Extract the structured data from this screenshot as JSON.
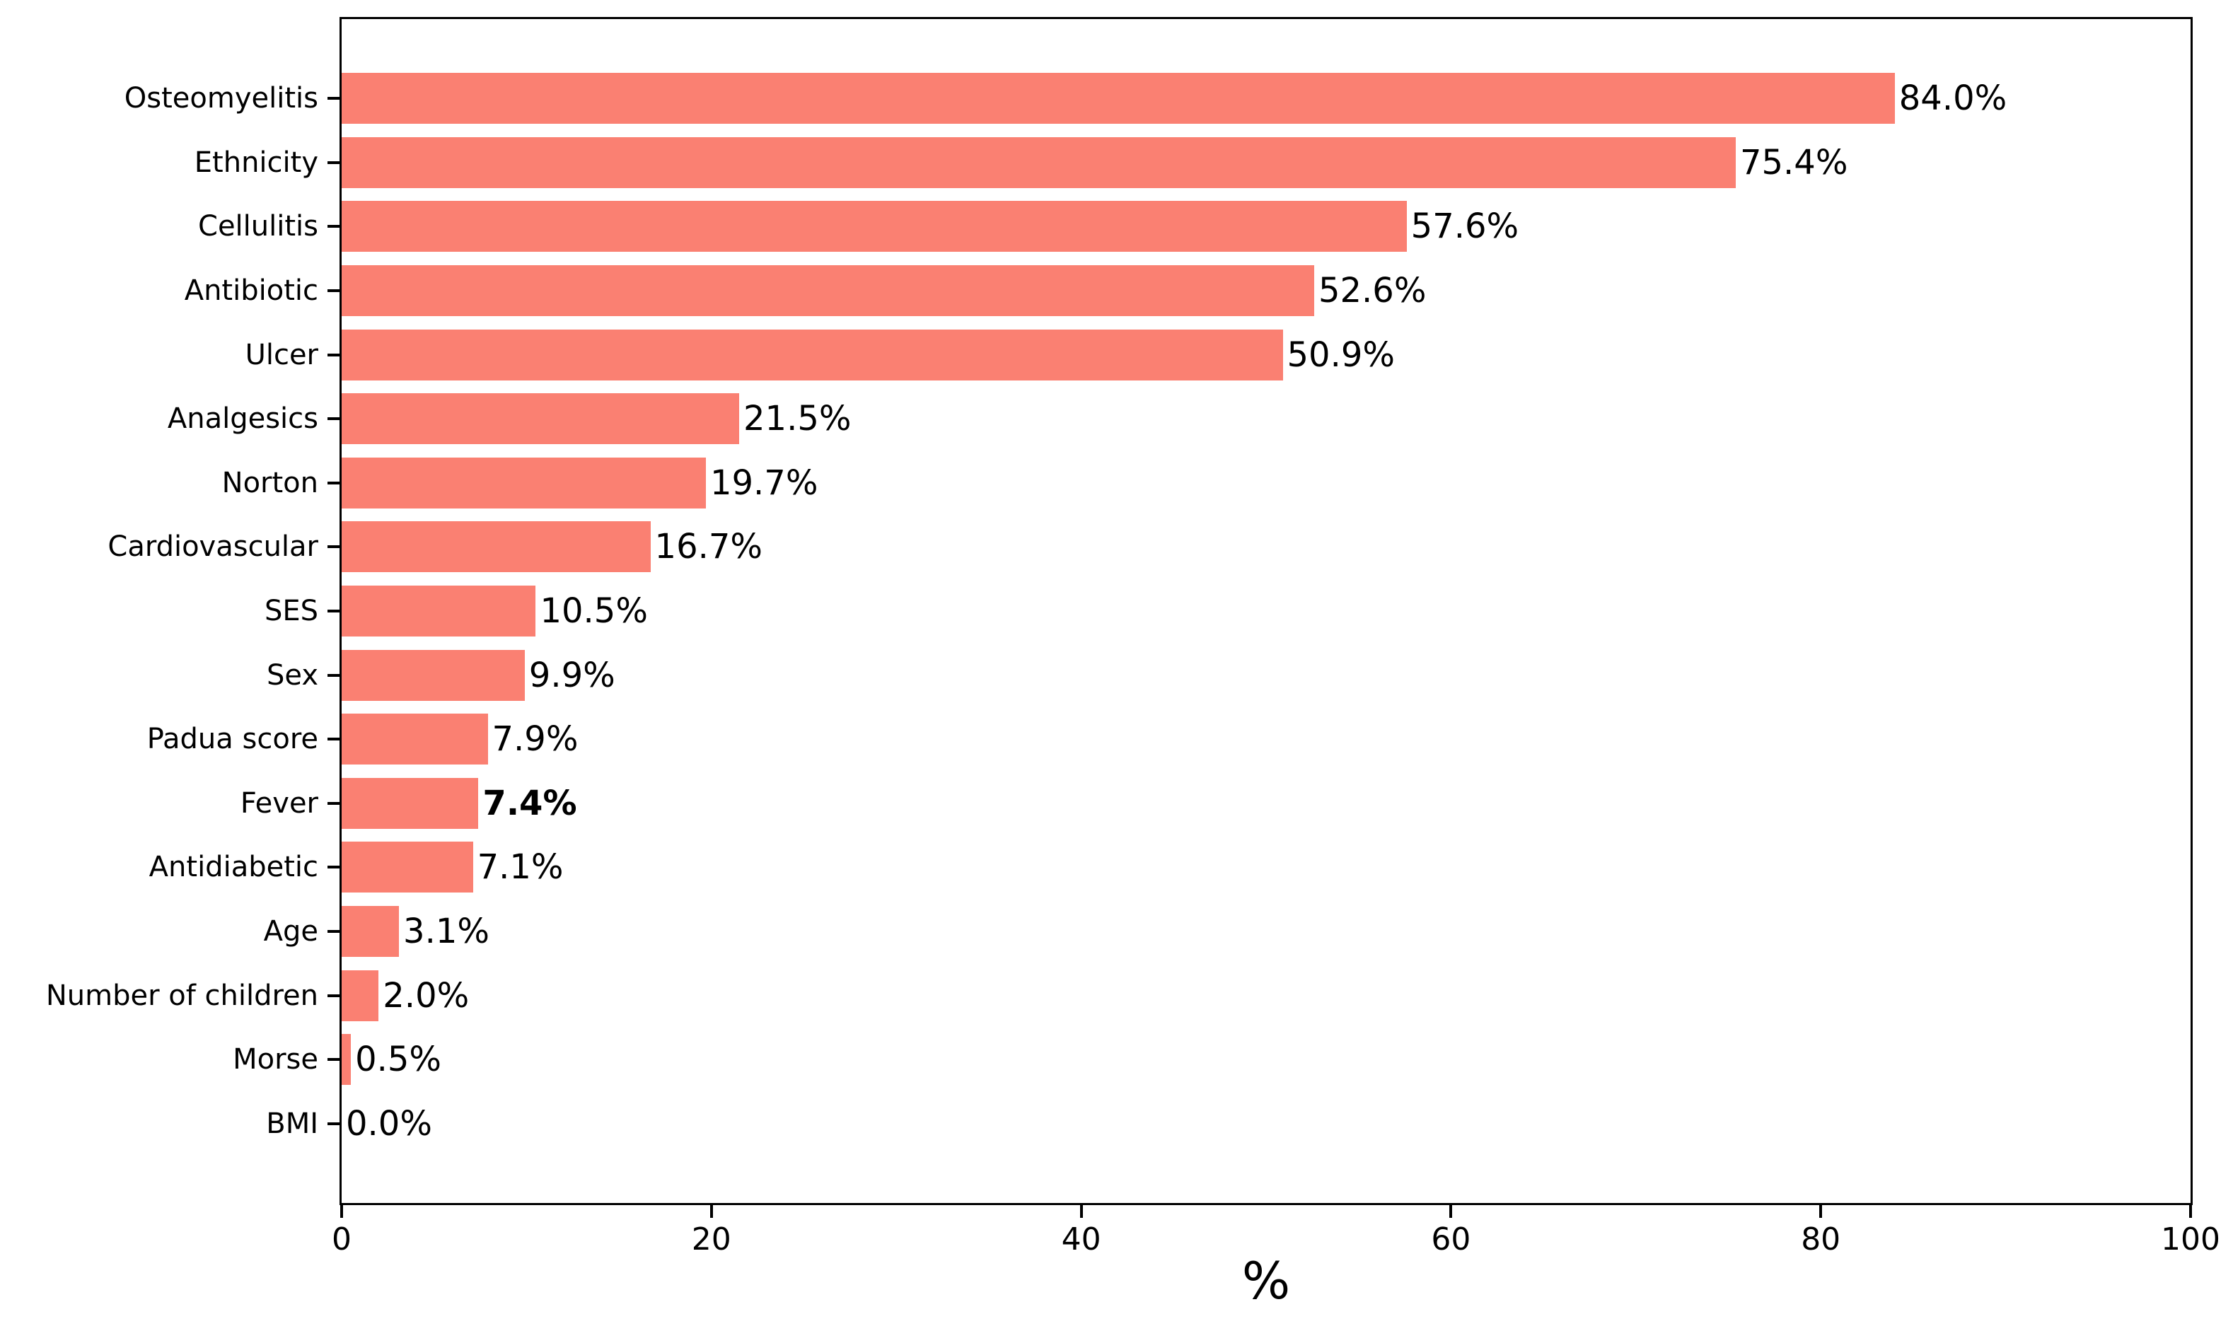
{
  "figure": {
    "background_color": "#ffffff",
    "axis_color": "#000000",
    "text_color": "#000000"
  },
  "chart_data": {
    "type": "bar",
    "orientation": "horizontal",
    "title": "",
    "xlabel": "%",
    "ylabel": "",
    "xlim": [
      0,
      100
    ],
    "xticks": [
      0,
      20,
      40,
      60,
      80,
      100
    ],
    "xtick_labels": [
      "0",
      "20",
      "40",
      "60",
      "80",
      "100"
    ],
    "grid": false,
    "legend": "none",
    "bar_color": "#FA8072",
    "categories": [
      "Osteomyelitis",
      "Ethnicity",
      "Cellulitis",
      "Antibiotic",
      "Ulcer",
      "Analgesics",
      "Norton",
      "Cardiovascular",
      "SES",
      "Sex",
      "Padua score",
      "Fever",
      "Antidiabetic",
      "Age",
      "Number of children",
      "Morse",
      "BMI"
    ],
    "values": [
      84.0,
      75.4,
      57.6,
      52.6,
      50.9,
      21.5,
      19.7,
      16.7,
      10.5,
      9.9,
      7.9,
      7.4,
      7.1,
      3.1,
      2.0,
      0.5,
      0.0
    ],
    "value_labels": [
      "84.0%",
      "75.4%",
      "57.6%",
      "52.6%",
      "50.9%",
      "21.5%",
      "19.7%",
      "16.7%",
      "10.5%",
      "9.9%",
      "7.9%",
      "7.4%",
      "7.1%",
      "3.1%",
      "2.0%",
      "0.5%",
      "0.0%"
    ],
    "bold_value_labels": [
      false,
      false,
      false,
      false,
      false,
      false,
      false,
      false,
      false,
      false,
      false,
      true,
      false,
      false,
      false,
      false,
      false
    ]
  }
}
